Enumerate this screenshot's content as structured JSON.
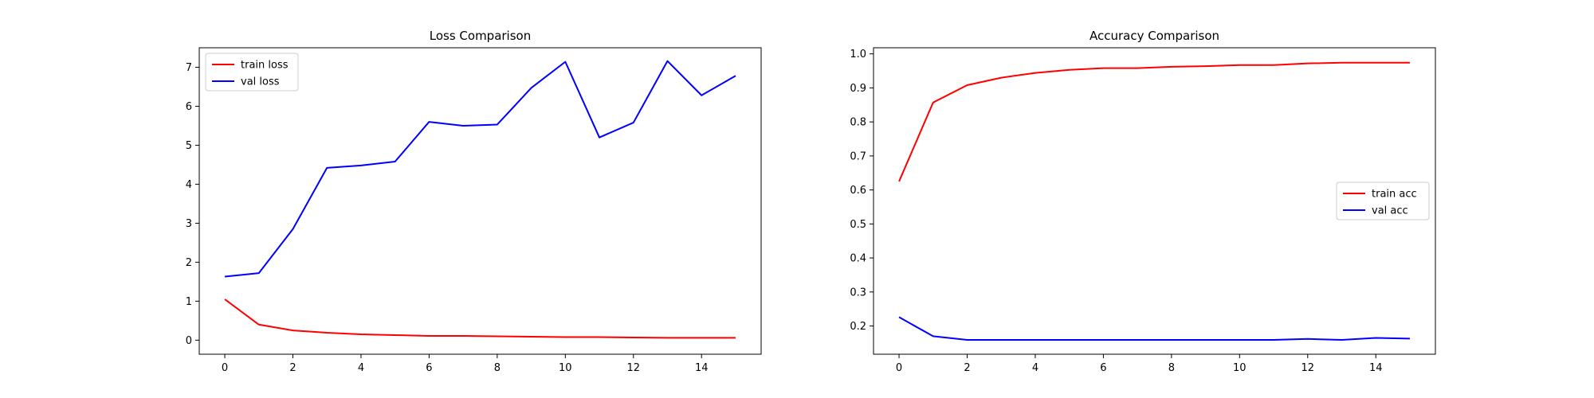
{
  "chart_data": [
    {
      "type": "line",
      "title": "Loss Comparison",
      "xlabel": "",
      "ylabel": "",
      "xlim": [
        -0.75,
        15.75
      ],
      "ylim": [
        -0.36,
        7.5
      ],
      "xticks": [
        0,
        2,
        4,
        6,
        8,
        10,
        12,
        14
      ],
      "yticks": [
        0,
        1,
        2,
        3,
        4,
        5,
        6,
        7
      ],
      "x": [
        0,
        1,
        2,
        3,
        4,
        5,
        6,
        7,
        8,
        9,
        10,
        11,
        12,
        13,
        14,
        15
      ],
      "grid": false,
      "legend_position": "top-left",
      "series": [
        {
          "name": "train loss",
          "color": "#ff0000",
          "values": [
            1.05,
            0.4,
            0.25,
            0.19,
            0.15,
            0.13,
            0.11,
            0.11,
            0.1,
            0.09,
            0.08,
            0.08,
            0.07,
            0.06,
            0.06,
            0.06
          ]
        },
        {
          "name": "val loss",
          "color": "#0000ff",
          "values": [
            1.63,
            1.72,
            2.85,
            4.42,
            4.48,
            4.58,
            5.6,
            5.5,
            5.53,
            6.47,
            7.14,
            5.2,
            5.58,
            7.16,
            6.28,
            6.78
          ]
        }
      ]
    },
    {
      "type": "line",
      "title": "Accuracy Comparison",
      "xlabel": "",
      "ylabel": "",
      "xlim": [
        -0.75,
        15.75
      ],
      "ylim": [
        0.117,
        1.018
      ],
      "xticks": [
        0,
        2,
        4,
        6,
        8,
        10,
        12,
        14
      ],
      "yticks": [
        0.2,
        0.3,
        0.4,
        0.5,
        0.6,
        0.7,
        0.8,
        0.9,
        1.0
      ],
      "ytick_labels": [
        "0.2",
        "0.3",
        "0.4",
        "0.5",
        "0.6",
        "0.7",
        "0.8",
        "0.9",
        "1.0"
      ],
      "x": [
        0,
        1,
        2,
        3,
        4,
        5,
        6,
        7,
        8,
        9,
        10,
        11,
        12,
        13,
        14,
        15
      ],
      "grid": false,
      "legend_position": "center-right",
      "series": [
        {
          "name": "train acc",
          "color": "#ff0000",
          "values": [
            0.625,
            0.857,
            0.908,
            0.93,
            0.944,
            0.953,
            0.958,
            0.958,
            0.962,
            0.964,
            0.967,
            0.967,
            0.972,
            0.974,
            0.974,
            0.974
          ]
        },
        {
          "name": "val acc",
          "color": "#0000ff",
          "values": [
            0.226,
            0.17,
            0.159,
            0.159,
            0.159,
            0.159,
            0.159,
            0.159,
            0.159,
            0.159,
            0.159,
            0.159,
            0.162,
            0.159,
            0.165,
            0.163
          ]
        }
      ]
    }
  ]
}
